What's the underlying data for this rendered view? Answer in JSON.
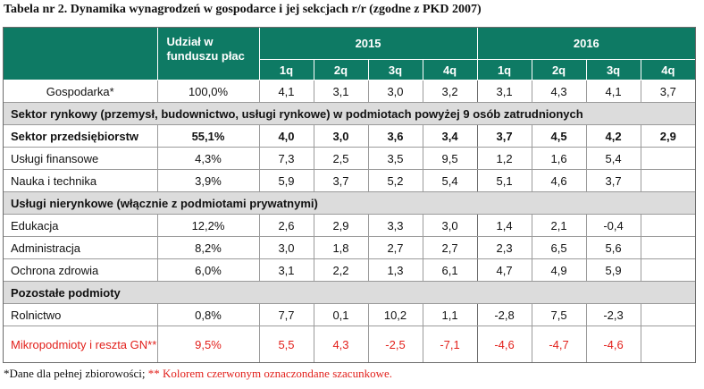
{
  "title": "Tabela nr 2. Dynamika wynagrodzeń w gospodarce i jej sekcjach r/r (zgodne z PKD 2007)",
  "header": {
    "share_col": "Udział w funduszu płac",
    "years": [
      "2015",
      "2016"
    ],
    "quarters": [
      "1q",
      "2q",
      "3q",
      "4q",
      "1q",
      "2q",
      "3q",
      "4q"
    ]
  },
  "rows": {
    "gospodarka": {
      "label": "Gospodarka*",
      "share": "100,0%",
      "values": [
        "4,1",
        "3,1",
        "3,0",
        "3,2",
        "3,1",
        "4,3",
        "4,1",
        "3,7"
      ]
    },
    "section1": "Sektor rynkowy (przemysł, budownictwo, usługi rynkowe) w podmiotach powyżej 9 osób zatrudnionych",
    "przedsiebiorstw": {
      "label": "Sektor przedsiębiorstw",
      "share": "55,1%",
      "values": [
        "4,0",
        "3,0",
        "3,6",
        "3,4",
        "3,7",
        "4,5",
        "4,2",
        "2,9"
      ]
    },
    "finansowe": {
      "label": "Usługi finansowe",
      "share": "4,3%",
      "values": [
        "7,3",
        "2,5",
        "3,5",
        "9,5",
        "1,2",
        "1,6",
        "5,4",
        ""
      ]
    },
    "nauka": {
      "label": "Nauka i technika",
      "share": "3,9%",
      "values": [
        "5,9",
        "3,7",
        "5,2",
        "5,4",
        "5,1",
        "4,6",
        "3,7",
        ""
      ]
    },
    "section2": "Usługi nierynkowe (włącznie z podmiotami prywatnymi)",
    "edukacja": {
      "label": "Edukacja",
      "share": "12,2%",
      "values": [
        "2,6",
        "2,9",
        "3,3",
        "3,0",
        "1,4",
        "2,1",
        "-0,4",
        ""
      ]
    },
    "administracja": {
      "label": "Administracja",
      "share": "8,2%",
      "values": [
        "3,0",
        "1,8",
        "2,7",
        "2,7",
        "2,3",
        "6,5",
        "5,6",
        ""
      ]
    },
    "zdrowie": {
      "label": "Ochrona zdrowia",
      "share": "6,0%",
      "values": [
        "3,1",
        "2,2",
        "1,3",
        "6,1",
        "4,7",
        "4,9",
        "5,9",
        ""
      ]
    },
    "section3": "Pozostałe podmioty",
    "rolnictwo": {
      "label": "Rolnictwo",
      "share": "0,8%",
      "values": [
        "7,7",
        "0,1",
        "10,2",
        "1,1",
        "-2,8",
        "7,5",
        "-2,3",
        ""
      ]
    },
    "mikro": {
      "label": "Mikropodmioty i reszta GN**",
      "share": "9,5%",
      "values": [
        "5,5",
        "4,3",
        "-2,5",
        "-7,1",
        "-4,6",
        "-4,7",
        "-4,6",
        ""
      ]
    }
  },
  "footnote": {
    "part1": "*Dane dla pełnej zbiorowości; ",
    "part2": "** Kolorem czerwonym oznaczondane szacunkowe."
  },
  "colors": {
    "header_bg": "#0e7a64",
    "section_bg": "#dcdcdc",
    "estimate_red": "#e2211c"
  }
}
